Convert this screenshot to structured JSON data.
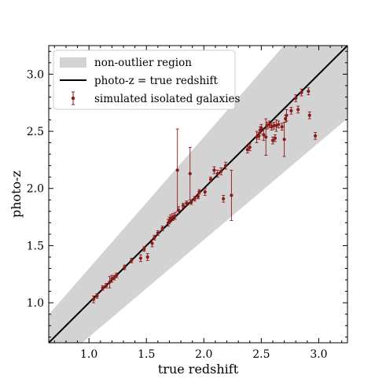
{
  "chart_data": {
    "type": "scatter",
    "xlabel": "true redshift",
    "ylabel": "photo-z",
    "xlim": [
      0.65,
      3.25
    ],
    "ylim": [
      0.65,
      3.25
    ],
    "xticks": [
      1.0,
      1.5,
      2.0,
      2.5,
      3.0
    ],
    "yticks": [
      1.0,
      1.5,
      2.0,
      2.5,
      3.0
    ],
    "xtick_labels": [
      "1.0",
      "1.5",
      "2.0",
      "2.5",
      "3.0"
    ],
    "ytick_labels": [
      "1.0",
      "1.5",
      "2.0",
      "2.5",
      "3.0"
    ],
    "legend_position": "top-left",
    "grid": false,
    "colors": {
      "points": "#8b1a1a",
      "region": "#d3d3d3",
      "line": "#000000"
    },
    "region": {
      "name": "non-outlier region",
      "relation": "photo-z = true redshift ± 0.15(1 + true redshift)"
    },
    "line": {
      "name": "photo-z = true redshift",
      "relation": "y = x"
    },
    "points_series": {
      "name": "simulated isolated galaxies",
      "points": [
        {
          "x": 1.04,
          "y": 1.03,
          "err": 0.03
        },
        {
          "x": 1.07,
          "y": 1.06,
          "err": 0.02
        },
        {
          "x": 1.12,
          "y": 1.13,
          "err": 0.02
        },
        {
          "x": 1.15,
          "y": 1.15,
          "err": 0.02
        },
        {
          "x": 1.18,
          "y": 1.18,
          "err": 0.05
        },
        {
          "x": 1.2,
          "y": 1.21,
          "err": 0.03
        },
        {
          "x": 1.22,
          "y": 1.22,
          "err": 0.02
        },
        {
          "x": 1.24,
          "y": 1.24,
          "err": 0.02
        },
        {
          "x": 1.31,
          "y": 1.31,
          "err": 0.02
        },
        {
          "x": 1.37,
          "y": 1.37,
          "err": 0.02
        },
        {
          "x": 1.45,
          "y": 1.39,
          "err": 0.03
        },
        {
          "x": 1.48,
          "y": 1.47,
          "err": 0.02
        },
        {
          "x": 1.51,
          "y": 1.4,
          "err": 0.03
        },
        {
          "x": 1.55,
          "y": 1.52,
          "err": 0.03
        },
        {
          "x": 1.57,
          "y": 1.57,
          "err": 0.02
        },
        {
          "x": 1.6,
          "y": 1.61,
          "err": 0.02
        },
        {
          "x": 1.64,
          "y": 1.65,
          "err": 0.02
        },
        {
          "x": 1.69,
          "y": 1.7,
          "err": 0.03
        },
        {
          "x": 1.7,
          "y": 1.72,
          "err": 0.03
        },
        {
          "x": 1.71,
          "y": 1.74,
          "err": 0.03
        },
        {
          "x": 1.73,
          "y": 1.75,
          "err": 0.03
        },
        {
          "x": 1.75,
          "y": 1.76,
          "err": 0.03
        },
        {
          "x": 1.77,
          "y": 2.16,
          "err": 0.36
        },
        {
          "x": 1.78,
          "y": 1.81,
          "err": 0.03
        },
        {
          "x": 1.82,
          "y": 1.85,
          "err": 0.02
        },
        {
          "x": 1.85,
          "y": 1.87,
          "err": 0.02
        },
        {
          "x": 1.88,
          "y": 2.13,
          "err": 0.23
        },
        {
          "x": 1.89,
          "y": 1.88,
          "err": 0.02
        },
        {
          "x": 1.92,
          "y": 1.91,
          "err": 0.02
        },
        {
          "x": 1.95,
          "y": 1.93,
          "err": 0.02
        },
        {
          "x": 1.96,
          "y": 1.97,
          "err": 0.02
        },
        {
          "x": 2.01,
          "y": 1.97,
          "err": 0.03
        },
        {
          "x": 2.06,
          "y": 2.08,
          "err": 0.02
        },
        {
          "x": 2.09,
          "y": 2.16,
          "err": 0.03
        },
        {
          "x": 2.12,
          "y": 2.13,
          "err": 0.03
        },
        {
          "x": 2.15,
          "y": 2.15,
          "err": 0.03
        },
        {
          "x": 2.17,
          "y": 1.91,
          "err": 0.03
        },
        {
          "x": 2.19,
          "y": 2.2,
          "err": 0.03
        },
        {
          "x": 2.24,
          "y": 1.94,
          "err": 0.22
        },
        {
          "x": 2.38,
          "y": 2.34,
          "err": 0.03
        },
        {
          "x": 2.4,
          "y": 2.36,
          "err": 0.03
        },
        {
          "x": 2.46,
          "y": 2.45,
          "err": 0.05
        },
        {
          "x": 2.48,
          "y": 2.46,
          "err": 0.03
        },
        {
          "x": 2.49,
          "y": 2.51,
          "err": 0.03
        },
        {
          "x": 2.5,
          "y": 2.53,
          "err": 0.03
        },
        {
          "x": 2.52,
          "y": 2.47,
          "err": 0.05
        },
        {
          "x": 2.54,
          "y": 2.45,
          "err": 0.16
        },
        {
          "x": 2.55,
          "y": 2.55,
          "err": 0.03
        },
        {
          "x": 2.57,
          "y": 2.56,
          "err": 0.03
        },
        {
          "x": 2.59,
          "y": 2.54,
          "err": 0.03
        },
        {
          "x": 2.6,
          "y": 2.42,
          "err": 0.03
        },
        {
          "x": 2.62,
          "y": 2.44,
          "err": 0.03
        },
        {
          "x": 2.61,
          "y": 2.55,
          "err": 0.03
        },
        {
          "x": 2.63,
          "y": 2.55,
          "err": 0.05
        },
        {
          "x": 2.65,
          "y": 2.56,
          "err": 0.03
        },
        {
          "x": 2.68,
          "y": 2.54,
          "err": 0.03
        },
        {
          "x": 2.7,
          "y": 2.43,
          "err": 0.15
        },
        {
          "x": 2.71,
          "y": 2.61,
          "err": 0.03
        },
        {
          "x": 2.72,
          "y": 2.64,
          "err": 0.05
        },
        {
          "x": 2.76,
          "y": 2.68,
          "err": 0.03
        },
        {
          "x": 2.8,
          "y": 2.79,
          "err": 0.03
        },
        {
          "x": 2.82,
          "y": 2.69,
          "err": 0.03
        },
        {
          "x": 2.85,
          "y": 2.84,
          "err": 0.03
        },
        {
          "x": 2.91,
          "y": 2.85,
          "err": 0.03
        },
        {
          "x": 2.92,
          "y": 2.64,
          "err": 0.03
        },
        {
          "x": 2.97,
          "y": 2.46,
          "err": 0.03
        }
      ]
    }
  }
}
